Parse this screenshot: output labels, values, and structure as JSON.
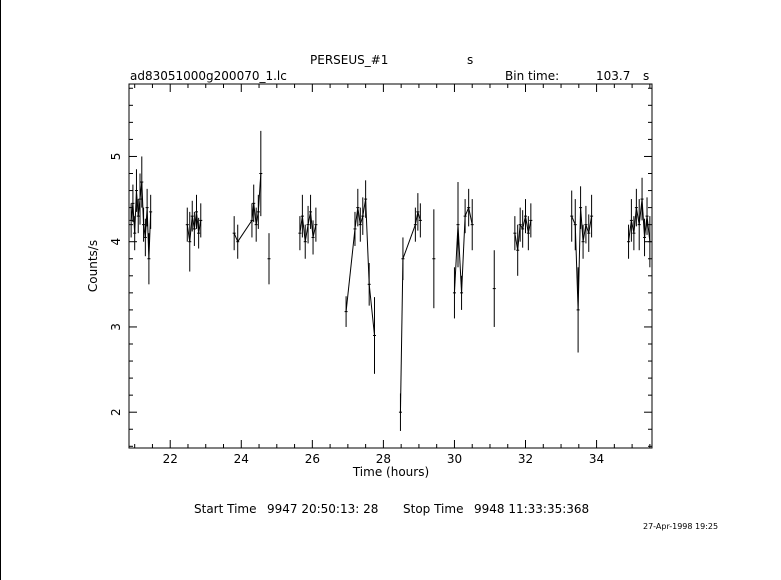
{
  "header": {
    "object_name": "PERSEUS_#1",
    "object_unit": "s",
    "file_name": "ad83051000g200070_1.lc",
    "bin_label": "Bin time:",
    "bin_value": "103.7",
    "bin_unit": "s"
  },
  "footer": {
    "start_label": "Start Time",
    "start_value": "9947 20:50:13: 28",
    "stop_label": "Stop Time",
    "stop_value": "9948 11:33:35:368",
    "stamp": "27-Apr-1998 19:25"
  },
  "chart_data": {
    "type": "scatter",
    "title": "PERSEUS_#1",
    "xlabel": "Time (hours)",
    "ylabel": "Counts/s",
    "xlim": [
      20.84,
      35.56
    ],
    "ylim": [
      1.58,
      5.85
    ],
    "x_ticks": [
      22,
      24,
      26,
      28,
      30,
      32,
      34
    ],
    "y_ticks": [
      2,
      3,
      4,
      5
    ],
    "grid": false,
    "legend": "none",
    "error_bars": true,
    "colors": {
      "marks": "#000000",
      "background": "#ffffff"
    },
    "segments": [
      {
        "start": 20.86,
        "end": 21.48,
        "points": [
          [
            20.9,
            4.25,
            0.2
          ],
          [
            20.95,
            4.45,
            0.22
          ],
          [
            21.0,
            4.1,
            0.2
          ],
          [
            21.05,
            4.6,
            0.25
          ],
          [
            21.1,
            4.3,
            0.2
          ],
          [
            21.15,
            4.5,
            0.3
          ],
          [
            21.2,
            4.7,
            0.3
          ],
          [
            21.25,
            4.2,
            0.2
          ],
          [
            21.3,
            4.05,
            0.22
          ],
          [
            21.35,
            4.4,
            0.22
          ],
          [
            21.4,
            3.8,
            0.3
          ],
          [
            21.45,
            4.35,
            0.2
          ]
        ]
      },
      {
        "start": 22.45,
        "end": 22.9,
        "points": [
          [
            22.48,
            4.2,
            0.2
          ],
          [
            22.55,
            4.0,
            0.35
          ],
          [
            22.62,
            4.3,
            0.18
          ],
          [
            22.68,
            4.15,
            0.2
          ],
          [
            22.74,
            4.35,
            0.2
          ],
          [
            22.8,
            4.1,
            0.18
          ],
          [
            22.86,
            4.25,
            0.2
          ]
        ]
      },
      {
        "start": 23.8,
        "end": 24.6,
        "points": [
          [
            23.8,
            4.1,
            0.2
          ],
          [
            23.9,
            4.0,
            0.2
          ],
          [
            24.3,
            4.25,
            0.2
          ],
          [
            24.35,
            4.45,
            0.22
          ],
          [
            24.42,
            4.2,
            0.2
          ],
          [
            24.48,
            4.35,
            0.2
          ],
          [
            24.55,
            4.8,
            0.5
          ]
        ]
      },
      {
        "start": 24.75,
        "end": 24.8,
        "points": [
          [
            24.78,
            3.8,
            0.3
          ]
        ]
      },
      {
        "start": 25.6,
        "end": 26.15,
        "points": [
          [
            25.65,
            4.1,
            0.2
          ],
          [
            25.72,
            4.3,
            0.25
          ],
          [
            25.8,
            4.0,
            0.2
          ],
          [
            25.88,
            4.2,
            0.22
          ],
          [
            25.95,
            4.35,
            0.2
          ],
          [
            26.02,
            4.05,
            0.2
          ],
          [
            26.1,
            4.2,
            0.2
          ]
        ]
      },
      {
        "start": 26.9,
        "end": 27.95,
        "points": [
          [
            26.95,
            3.18,
            0.18
          ],
          [
            27.2,
            4.15,
            0.2
          ],
          [
            27.28,
            4.4,
            0.22
          ],
          [
            27.35,
            4.2,
            0.2
          ],
          [
            27.42,
            4.3,
            0.22
          ],
          [
            27.5,
            4.5,
            0.22
          ],
          [
            27.6,
            3.5,
            0.25
          ],
          [
            27.75,
            2.9,
            0.45
          ]
        ]
      },
      {
        "start": 28.45,
        "end": 29.1,
        "points": [
          [
            28.48,
            2.0,
            0.22
          ],
          [
            28.55,
            3.8,
            0.25
          ],
          [
            28.9,
            4.2,
            0.2
          ],
          [
            28.97,
            4.35,
            0.22
          ],
          [
            29.04,
            4.25,
            0.2
          ]
        ]
      },
      {
        "start": 29.4,
        "end": 29.45,
        "points": [
          [
            29.42,
            3.8,
            0.58
          ]
        ]
      },
      {
        "start": 29.9,
        "end": 30.6,
        "points": [
          [
            30.0,
            3.4,
            0.3
          ],
          [
            30.1,
            4.2,
            0.5
          ],
          [
            30.2,
            3.4,
            0.2
          ],
          [
            30.3,
            4.3,
            0.2
          ],
          [
            30.4,
            4.4,
            0.22
          ],
          [
            30.5,
            4.2,
            0.3
          ]
        ]
      },
      {
        "start": 31.1,
        "end": 31.15,
        "points": [
          [
            31.12,
            3.45,
            0.45
          ]
        ]
      },
      {
        "start": 31.65,
        "end": 32.25,
        "points": [
          [
            31.7,
            4.1,
            0.2
          ],
          [
            31.78,
            3.9,
            0.3
          ],
          [
            31.85,
            4.2,
            0.2
          ],
          [
            31.92,
            4.15,
            0.22
          ],
          [
            32.0,
            4.3,
            0.2
          ],
          [
            32.08,
            4.1,
            0.2
          ],
          [
            32.15,
            4.25,
            0.2
          ]
        ]
      },
      {
        "start": 33.25,
        "end": 33.95,
        "points": [
          [
            33.3,
            4.3,
            0.3
          ],
          [
            33.4,
            4.2,
            0.3
          ],
          [
            33.48,
            3.2,
            0.5
          ],
          [
            33.55,
            4.4,
            0.25
          ],
          [
            33.62,
            4.0,
            0.2
          ],
          [
            33.7,
            4.2,
            0.22
          ],
          [
            33.78,
            4.1,
            0.22
          ],
          [
            33.86,
            4.3,
            0.25
          ]
        ]
      },
      {
        "start": 34.85,
        "end": 35.55,
        "points": [
          [
            34.9,
            4.0,
            0.2
          ],
          [
            34.98,
            4.25,
            0.25
          ],
          [
            35.05,
            4.1,
            0.2
          ],
          [
            35.12,
            4.4,
            0.22
          ],
          [
            35.2,
            4.2,
            0.3
          ],
          [
            35.28,
            4.5,
            0.25
          ],
          [
            35.35,
            4.05,
            0.22
          ],
          [
            35.42,
            4.3,
            0.22
          ],
          [
            35.5,
            4.0,
            0.3
          ]
        ]
      }
    ]
  }
}
